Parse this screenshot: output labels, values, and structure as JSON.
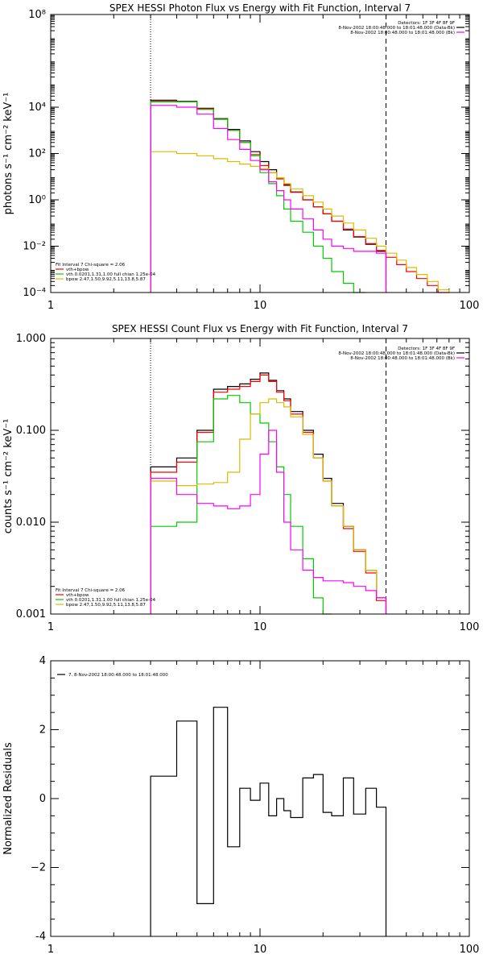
{
  "colors": {
    "background": "#ffffff",
    "axes": "#000000",
    "data": "#000000",
    "total": "#ff0000",
    "vth": "#00cc00",
    "bpow": "#ddbb00",
    "bk": "#ff00ff"
  },
  "chart_data": [
    {
      "type": "line",
      "title": "SPEX HESSI Photon Flux vs Energy with Fit Function, Interval 7",
      "ylabel": "photons s⁻¹ cm⁻² keV⁻¹",
      "xlabel": "",
      "xscale": "log",
      "yscale": "log",
      "xlim": [
        1,
        100
      ],
      "ylim": [
        0.0001,
        100000000
      ],
      "xticks": [
        {
          "v": 1,
          "label": "1"
        },
        {
          "v": 10,
          "label": "10"
        },
        {
          "v": 100,
          "label": "100"
        }
      ],
      "yticks": [
        {
          "v": 0.0001,
          "label": "10⁻⁴"
        },
        {
          "v": 0.01,
          "label": "10⁻²"
        },
        {
          "v": 1,
          "label": "10⁰"
        },
        {
          "v": 100,
          "label": "10²"
        },
        {
          "v": 10000,
          "label": "10⁴"
        },
        {
          "v": 100000000,
          "label": "10⁸"
        }
      ],
      "vlines": [
        {
          "x": 3.0,
          "style": "dotted"
        },
        {
          "x": 40.0,
          "style": "dashed"
        }
      ],
      "legend_top": [
        "Detectors: 1F 3F 4F 8F 9F",
        "8-Nov-2002 18:00:48.000 to 18:01:48.000 (Data-Bk)",
        "8-Nov-2002 18:00:48.000 to 18:01:48.000 (Bk)"
      ],
      "legend_bottom": [
        "Fit Interval 7   Chi-square = 2.06",
        "vth+bpow",
        "vth 0.0201,1.31,1.00  full chian 1.25e-04",
        "bpow 2.47,1.50,9.92,5.11,13.8,5.87"
      ],
      "bin_edges": [
        3.0,
        4.0,
        5.0,
        6.0,
        7.0,
        8.0,
        9.0,
        10.0,
        11.0,
        12.0,
        13.0,
        14.0,
        16.0,
        18.0,
        20.0,
        22.0,
        25.0,
        28.0,
        32.0,
        36.0,
        40.0,
        45.0,
        50.0,
        56.0,
        63.0,
        71.0,
        80.0
      ],
      "series": [
        {
          "name": "Data-Bk",
          "color": "#000000",
          "values": [
            20000,
            18000,
            9000,
            3200,
            1100,
            350,
            120,
            45,
            20,
            9,
            4.5,
            2.2,
            1.0,
            0.5,
            0.25,
            0.12,
            0.05,
            0.025,
            0.012,
            0.006,
            null,
            null,
            null,
            null,
            null,
            null
          ]
        },
        {
          "name": "vth+bpow",
          "color": "#ff0000",
          "values": [
            18000,
            17000,
            8500,
            3000,
            1000,
            300,
            90,
            30,
            15,
            8,
            4.2,
            2.1,
            1.0,
            0.5,
            0.25,
            0.12,
            0.055,
            0.026,
            0.013,
            0.0065,
            0.0033,
            0.0016,
            0.0008,
            0.0004,
            0.0002,
            0.0001
          ]
        },
        {
          "name": "vth",
          "color": "#00cc00",
          "values": [
            17000,
            17000,
            8000,
            3000,
            1000,
            300,
            80,
            15,
            5,
            1.5,
            0.4,
            0.12,
            0.04,
            0.01,
            0.003,
            0.0008,
            0.00025,
            8e-05,
            null,
            null,
            null,
            null,
            null,
            null,
            null,
            null
          ]
        },
        {
          "name": "bpow",
          "color": "#ddbb00",
          "values": [
            120,
            100,
            80,
            60,
            45,
            35,
            28,
            22,
            15,
            9,
            5,
            3,
            1.5,
            0.8,
            0.4,
            0.2,
            0.1,
            0.05,
            0.022,
            0.01,
            0.005,
            0.0025,
            0.0012,
            0.0006,
            0.0003,
            0.00013
          ]
        },
        {
          "name": "Bk",
          "color": "#ff00ff",
          "values": [
            12000,
            10000,
            5000,
            1200,
            400,
            150,
            50,
            20,
            6,
            2.5,
            1,
            0.4,
            0.15,
            0.05,
            0.02,
            0.01,
            0.008,
            0.006,
            0.006,
            0.005,
            null,
            null,
            null,
            null,
            null,
            null
          ]
        }
      ]
    },
    {
      "type": "line",
      "title": "SPEX HESSI Count Flux vs Energy with Fit Function, Interval 7",
      "ylabel": "counts s⁻¹ cm⁻² keV⁻¹",
      "xlabel": "",
      "xscale": "log",
      "yscale": "log",
      "xlim": [
        1,
        100
      ],
      "ylim": [
        0.001,
        1.0
      ],
      "xticks": [
        {
          "v": 1,
          "label": "1"
        },
        {
          "v": 10,
          "label": "10"
        },
        {
          "v": 100,
          "label": "100"
        }
      ],
      "yticks": [
        {
          "v": 0.001,
          "label": "0.001"
        },
        {
          "v": 0.01,
          "label": "0.010"
        },
        {
          "v": 0.1,
          "label": "0.100"
        },
        {
          "v": 1.0,
          "label": "1.000"
        }
      ],
      "vlines": [
        {
          "x": 3.0,
          "style": "dotted"
        },
        {
          "x": 40.0,
          "style": "dashed"
        }
      ],
      "legend_top": [
        "Detectors: 1F 3F 4F 8F 9F",
        "8-Nov-2002 18:00:48.000 to 18:01:48.000 (Data-Bk)",
        "8-Nov-2002 18:00:48.000 to 18:01:48.000 (Bk)"
      ],
      "legend_bottom": [
        "Fit Interval 7   Chi-square = 2.06",
        "vth+bpow",
        "vth 0.0201,1.31,1.00  full chian 1.25e-04",
        "bpow 2.47,1.50,9.92,5.11,13.8,5.87"
      ],
      "bin_edges": [
        3.0,
        4.0,
        5.0,
        6.0,
        7.0,
        8.0,
        9.0,
        10.0,
        11.0,
        12.0,
        13.0,
        14.0,
        16.0,
        18.0,
        20.0,
        22.0,
        25.0,
        28.0,
        32.0,
        36.0,
        40.0
      ],
      "series": [
        {
          "name": "Data-Bk",
          "color": "#000000",
          "values": [
            0.04,
            0.05,
            0.1,
            0.28,
            0.3,
            0.32,
            0.36,
            0.42,
            0.35,
            0.27,
            0.22,
            0.16,
            0.1,
            0.055,
            0.03,
            0.016,
            0.009,
            0.005,
            0.003,
            0.0015
          ]
        },
        {
          "name": "vth+bpow",
          "color": "#ff0000",
          "values": [
            0.035,
            0.045,
            0.095,
            0.26,
            0.28,
            0.3,
            0.34,
            0.4,
            0.34,
            0.26,
            0.21,
            0.15,
            0.095,
            0.05,
            0.028,
            0.015,
            0.0085,
            0.0048,
            0.0028,
            0.0014
          ]
        },
        {
          "name": "vth",
          "color": "#00cc00",
          "values": [
            0.009,
            0.01,
            0.075,
            0.22,
            0.24,
            0.2,
            0.15,
            0.12,
            0.075,
            0.04,
            0.02,
            0.009,
            0.004,
            0.0015,
            0.0008,
            null,
            null,
            null,
            null,
            null
          ]
        },
        {
          "name": "bpow",
          "color": "#ddbb00",
          "values": [
            0.028,
            0.025,
            0.026,
            0.027,
            0.035,
            0.08,
            0.15,
            0.2,
            0.22,
            0.2,
            0.18,
            0.14,
            0.09,
            0.05,
            0.028,
            0.015,
            0.009,
            0.005,
            0.003,
            0.0015
          ]
        },
        {
          "name": "Bk",
          "color": "#ff00ff",
          "values": [
            0.03,
            0.02,
            0.016,
            0.015,
            0.014,
            0.015,
            0.02,
            0.055,
            0.1,
            0.035,
            0.01,
            0.005,
            0.003,
            0.0025,
            0.0023,
            0.0023,
            0.0022,
            0.002,
            0.0018,
            0.0015
          ]
        }
      ]
    },
    {
      "type": "line",
      "title": "",
      "ylabel": "Normalized Residuals",
      "xlabel": "",
      "xscale": "log",
      "yscale": "linear",
      "xlim": [
        1,
        100
      ],
      "ylim": [
        -4,
        4
      ],
      "xticks": [
        {
          "v": 1,
          "label": "1"
        },
        {
          "v": 10,
          "label": "10"
        },
        {
          "v": 100,
          "label": "100"
        }
      ],
      "yticks": [
        {
          "v": -4,
          "label": "-4"
        },
        {
          "v": -2,
          "label": "−2"
        },
        {
          "v": 0,
          "label": "0"
        },
        {
          "v": 2,
          "label": "2"
        },
        {
          "v": 4,
          "label": "4"
        }
      ],
      "legend_top": [
        "7.  8-Nov-2002 18:00:48.000 to 18:01:48.000"
      ],
      "bin_edges": [
        3.0,
        4.0,
        5.0,
        6.0,
        7.0,
        8.0,
        9.0,
        10.0,
        11.0,
        12.0,
        13.0,
        14.0,
        16.0,
        18.0,
        20.0,
        22.0,
        25.0,
        28.0,
        32.0,
        36.0,
        40.0
      ],
      "series": [
        {
          "name": "7.  8-Nov-2002 18:00:48.000 to 18:01:48.000",
          "color": "#000000",
          "values": [
            0.65,
            2.25,
            -3.05,
            2.65,
            -1.4,
            0.3,
            -0.05,
            0.45,
            -0.5,
            0.0,
            -0.35,
            -0.55,
            0.6,
            0.7,
            -0.4,
            -0.5,
            0.6,
            -0.45,
            0.3,
            -0.25
          ]
        }
      ]
    }
  ]
}
